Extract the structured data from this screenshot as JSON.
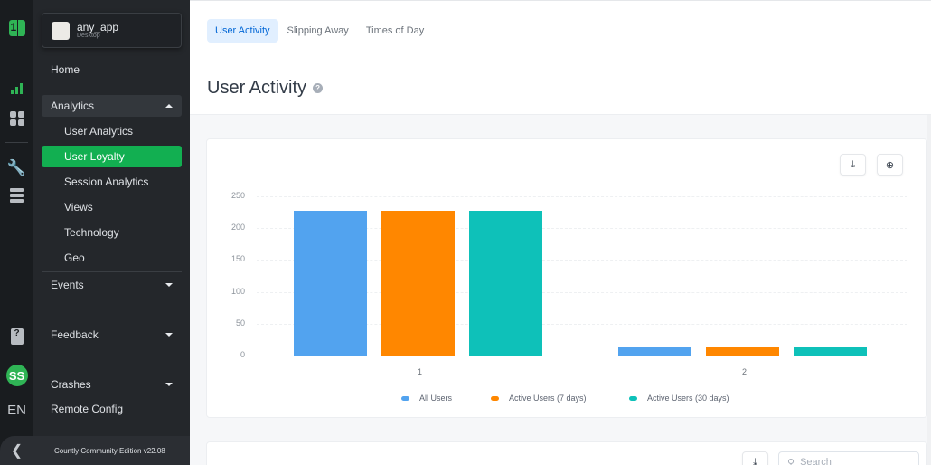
{
  "app_selector": {
    "name": "any_app",
    "platform": "Desktop"
  },
  "rail": {
    "avatar_initials": "SS",
    "language": "EN"
  },
  "sidebar": {
    "home": "Home",
    "analytics": {
      "label": "Analytics",
      "items": [
        {
          "label": "User Analytics"
        },
        {
          "label": "User Loyalty",
          "active": true
        },
        {
          "label": "Session Analytics"
        },
        {
          "label": "Views"
        },
        {
          "label": "Technology"
        },
        {
          "label": "Geo"
        }
      ]
    },
    "events": "Events",
    "feedback": "Feedback",
    "crashes": "Crashes",
    "remote_config": "Remote Config",
    "footer": "Countly Community Edition v22.08"
  },
  "tabs": [
    {
      "label": "User Activity",
      "active": true
    },
    {
      "label": "Slipping Away"
    },
    {
      "label": "Times of Day"
    }
  ],
  "page_title": "User Activity",
  "help_icon": "?",
  "chart_toolbar": {
    "download": "download-icon",
    "zoom": "zoom-in-icon"
  },
  "table_toolbar": {
    "search_placeholder": "Search"
  },
  "chart_data": {
    "type": "bar",
    "title": "",
    "xlabel": "",
    "ylabel": "",
    "categories": [
      "1",
      "2"
    ],
    "ylim": [
      0,
      250
    ],
    "yticks": [
      0,
      50,
      100,
      150,
      200,
      250
    ],
    "grid": true,
    "legend_position": "bottom",
    "series": [
      {
        "name": "All Users",
        "color": "#52a3ef",
        "values": [
          227,
          13
        ]
      },
      {
        "name": "Active Users (7 days)",
        "color": "#ff8700",
        "values": [
          227,
          13
        ]
      },
      {
        "name": "Active Users (30 days)",
        "color": "#0ec1b9",
        "values": [
          227,
          13
        ]
      }
    ]
  }
}
